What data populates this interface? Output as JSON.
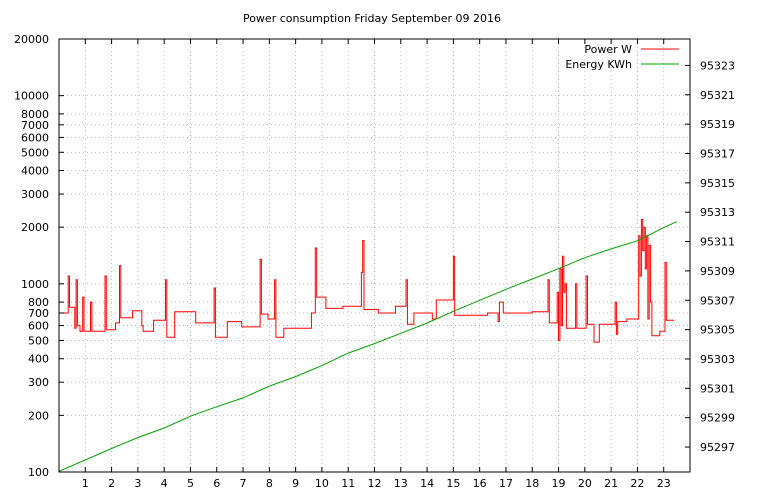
{
  "chart_data": {
    "type": "line",
    "title": "Power consumption Friday September 09 2016",
    "x": {
      "range": [
        0,
        24
      ],
      "ticks": [
        1,
        2,
        3,
        4,
        5,
        6,
        7,
        8,
        9,
        10,
        11,
        12,
        13,
        14,
        15,
        16,
        17,
        18,
        19,
        20,
        21,
        22,
        23
      ]
    },
    "y_left": {
      "scale": "log",
      "range": [
        100,
        20000
      ],
      "ticks": [
        100,
        200,
        300,
        400,
        500,
        600,
        700,
        800,
        1000,
        2000,
        3000,
        4000,
        5000,
        6000,
        7000,
        8000,
        10000,
        20000
      ]
    },
    "y_right": {
      "range": [
        95295.3,
        95324.8
      ],
      "ticks": [
        95297,
        95299,
        95301,
        95303,
        95305,
        95307,
        95309,
        95311,
        95313,
        95315,
        95317,
        95319,
        95321,
        95323
      ]
    },
    "grid": true,
    "legend": {
      "position": "top-right"
    },
    "series": [
      {
        "name": "Power W",
        "axis": "left",
        "color": "#ff0000",
        "points": [
          [
            0.05,
            700
          ],
          [
            0.3,
            700
          ],
          [
            0.35,
            1100
          ],
          [
            0.4,
            750
          ],
          [
            0.55,
            750
          ],
          [
            0.6,
            580
          ],
          [
            0.65,
            1050
          ],
          [
            0.7,
            600
          ],
          [
            0.8,
            560
          ],
          [
            0.9,
            850
          ],
          [
            0.95,
            560
          ],
          [
            1.15,
            560
          ],
          [
            1.2,
            800
          ],
          [
            1.25,
            560
          ],
          [
            1.7,
            560
          ],
          [
            1.75,
            1100
          ],
          [
            1.8,
            570
          ],
          [
            2.1,
            570
          ],
          [
            2.15,
            620
          ],
          [
            2.25,
            620
          ],
          [
            2.3,
            1250
          ],
          [
            2.35,
            660
          ],
          [
            2.75,
            660
          ],
          [
            2.8,
            720
          ],
          [
            3.1,
            720
          ],
          [
            3.15,
            600
          ],
          [
            3.2,
            560
          ],
          [
            3.55,
            560
          ],
          [
            3.6,
            640
          ],
          [
            4.0,
            640
          ],
          [
            4.05,
            1050
          ],
          [
            4.1,
            520
          ],
          [
            4.35,
            520
          ],
          [
            4.4,
            710
          ],
          [
            5.15,
            710
          ],
          [
            5.2,
            620
          ],
          [
            5.8,
            620
          ],
          [
            5.9,
            950
          ],
          [
            5.95,
            520
          ],
          [
            6.35,
            520
          ],
          [
            6.4,
            630
          ],
          [
            6.9,
            630
          ],
          [
            6.95,
            590
          ],
          [
            7.6,
            590
          ],
          [
            7.65,
            1350
          ],
          [
            7.7,
            690
          ],
          [
            7.9,
            690
          ],
          [
            7.95,
            650
          ],
          [
            8.15,
            650
          ],
          [
            8.2,
            1050
          ],
          [
            8.25,
            520
          ],
          [
            8.5,
            520
          ],
          [
            8.55,
            580
          ],
          [
            9.55,
            580
          ],
          [
            9.6,
            700
          ],
          [
            9.7,
            700
          ],
          [
            9.75,
            1550
          ],
          [
            9.8,
            850
          ],
          [
            10.1,
            850
          ],
          [
            10.15,
            740
          ],
          [
            10.75,
            740
          ],
          [
            10.8,
            760
          ],
          [
            11.45,
            760
          ],
          [
            11.5,
            1150
          ],
          [
            11.55,
            1700
          ],
          [
            11.6,
            730
          ],
          [
            12.1,
            730
          ],
          [
            12.15,
            700
          ],
          [
            12.75,
            700
          ],
          [
            12.8,
            760
          ],
          [
            13.15,
            760
          ],
          [
            13.2,
            1050
          ],
          [
            13.25,
            610
          ],
          [
            13.45,
            610
          ],
          [
            13.5,
            700
          ],
          [
            14.15,
            700
          ],
          [
            14.2,
            650
          ],
          [
            14.3,
            650
          ],
          [
            14.35,
            820
          ],
          [
            14.95,
            820
          ],
          [
            15.0,
            1400
          ],
          [
            15.05,
            680
          ],
          [
            16.2,
            680
          ],
          [
            16.3,
            700
          ],
          [
            16.65,
            700
          ],
          [
            16.7,
            630
          ],
          [
            16.75,
            800
          ],
          [
            16.85,
            800
          ],
          [
            16.9,
            700
          ],
          [
            17.95,
            700
          ],
          [
            18.0,
            710
          ],
          [
            18.55,
            710
          ],
          [
            18.6,
            1050
          ],
          [
            18.65,
            620
          ],
          [
            18.8,
            620
          ],
          [
            18.95,
            900
          ],
          [
            19.0,
            500
          ],
          [
            19.05,
            1200
          ],
          [
            19.1,
            600
          ],
          [
            19.15,
            1400
          ],
          [
            19.2,
            900
          ],
          [
            19.25,
            1000
          ],
          [
            19.3,
            580
          ],
          [
            19.6,
            580
          ],
          [
            19.65,
            1000
          ],
          [
            19.7,
            580
          ],
          [
            20.0,
            580
          ],
          [
            20.05,
            1100
          ],
          [
            20.1,
            610
          ],
          [
            20.3,
            610
          ],
          [
            20.35,
            490
          ],
          [
            20.5,
            490
          ],
          [
            20.55,
            610
          ],
          [
            21.1,
            610
          ],
          [
            21.15,
            800
          ],
          [
            21.2,
            540
          ],
          [
            21.25,
            630
          ],
          [
            21.55,
            630
          ],
          [
            21.6,
            650
          ],
          [
            21.8,
            650
          ],
          [
            22.0,
            650
          ],
          [
            22.05,
            1800
          ],
          [
            22.1,
            1100
          ],
          [
            22.15,
            2200
          ],
          [
            22.2,
            1500
          ],
          [
            22.25,
            2000
          ],
          [
            22.3,
            1200
          ],
          [
            22.35,
            1800
          ],
          [
            22.4,
            650
          ],
          [
            22.45,
            1600
          ],
          [
            22.5,
            800
          ],
          [
            22.55,
            530
          ],
          [
            22.8,
            530
          ],
          [
            22.85,
            560
          ],
          [
            23.0,
            560
          ],
          [
            23.05,
            1300
          ],
          [
            23.1,
            640
          ],
          [
            23.4,
            640
          ]
        ]
      },
      {
        "name": "Energy KWh",
        "axis": "right",
        "color": "#00a000",
        "points": [
          [
            0,
            95295.35
          ],
          [
            2,
            95296.9
          ],
          [
            3,
            95297.65
          ],
          [
            4,
            95298.3
          ],
          [
            5,
            95299.1
          ],
          [
            6,
            95299.75
          ],
          [
            7,
            95300.35
          ],
          [
            8,
            95301.15
          ],
          [
            9,
            95301.8
          ],
          [
            10,
            95302.55
          ],
          [
            11,
            95303.4
          ],
          [
            12,
            95304.05
          ],
          [
            13,
            95304.75
          ],
          [
            14,
            95305.45
          ],
          [
            15,
            95306.25
          ],
          [
            16,
            95307.0
          ],
          [
            17,
            95307.75
          ],
          [
            18,
            95308.45
          ],
          [
            19,
            95309.15
          ],
          [
            20,
            95309.9
          ],
          [
            21,
            95310.5
          ],
          [
            22,
            95311.05
          ],
          [
            23,
            95311.95
          ],
          [
            23.5,
            95312.35
          ]
        ]
      }
    ]
  }
}
